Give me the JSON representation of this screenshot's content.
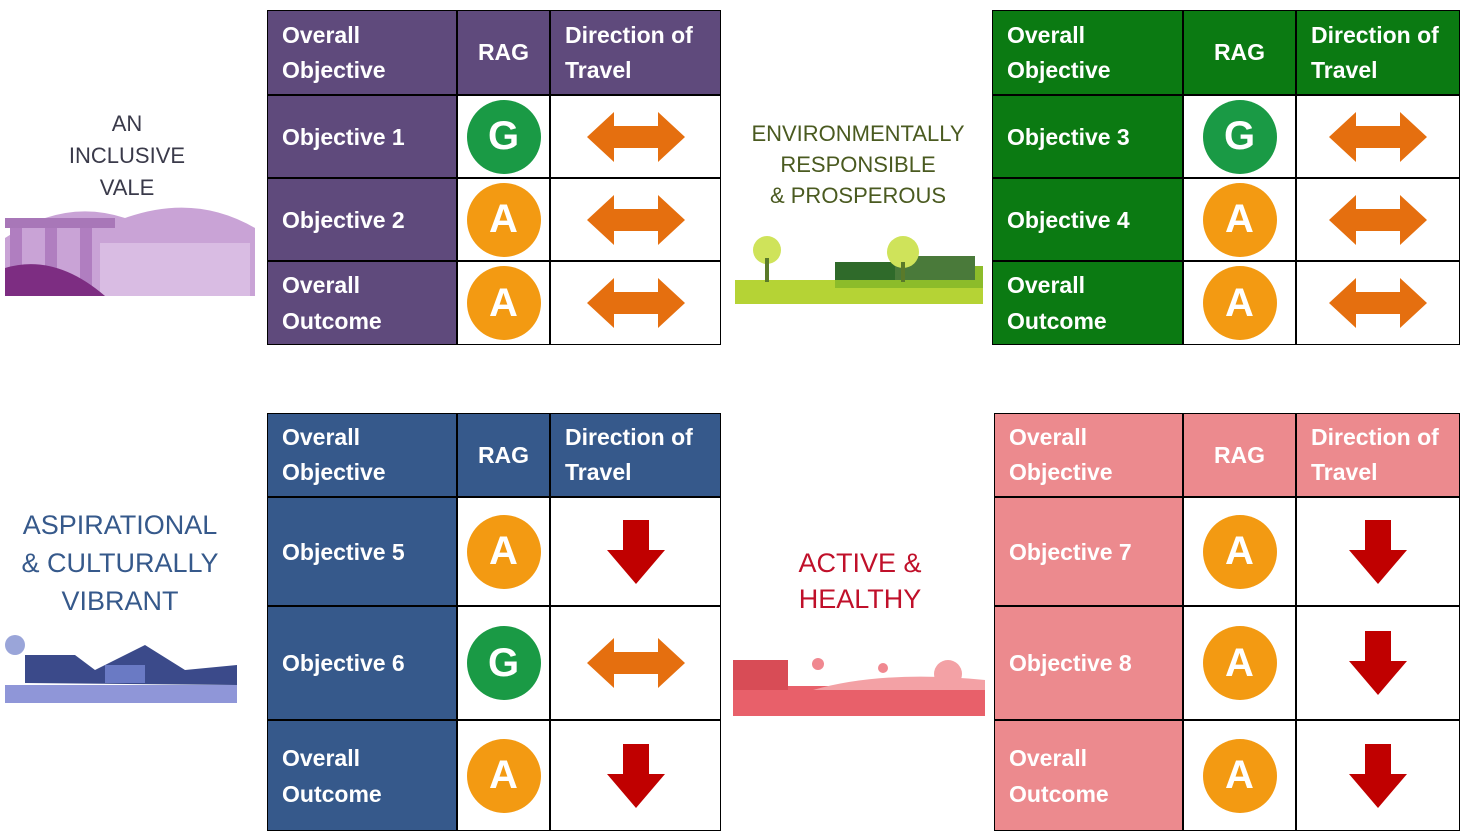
{
  "rag_colors": {
    "G": "#1a9a45",
    "A": "#f39a12"
  },
  "panels": [
    {
      "theme": [
        "AN",
        "INCLUSIVE",
        "VALE"
      ],
      "color": "#5f4a7c",
      "header": [
        "Overall Objective",
        "RAG",
        "Direction of Travel"
      ],
      "rows": [
        {
          "label": "Objective 1",
          "rag": "G",
          "direction": "both"
        },
        {
          "label": "Objective 2",
          "rag": "A",
          "direction": "both"
        },
        {
          "label": "Overall Outcome",
          "rag": "A",
          "direction": "both"
        }
      ]
    },
    {
      "theme": [
        "ENVIRONMENTALLY",
        "RESPONSIBLE",
        "& PROSPEROUS"
      ],
      "color": "#0b7a12",
      "header": [
        "Overall Objective",
        "RAG",
        "Direction of Travel"
      ],
      "rows": [
        {
          "label": "Objective 3",
          "rag": "G",
          "direction": "both"
        },
        {
          "label": "Objective 4",
          "rag": "A",
          "direction": "both"
        },
        {
          "label": "Overall Outcome",
          "rag": "A",
          "direction": "both"
        }
      ]
    },
    {
      "theme": [
        "ASPIRATIONAL",
        "& CULTURALLY",
        "VIBRANT"
      ],
      "color": "#36598b",
      "header": [
        "Overall Objective",
        "RAG",
        "Direction of Travel"
      ],
      "rows": [
        {
          "label": "Objective 5",
          "rag": "A",
          "direction": "down"
        },
        {
          "label": "Objective 6",
          "rag": "G",
          "direction": "both"
        },
        {
          "label": "Overall Outcome",
          "rag": "A",
          "direction": "down"
        }
      ]
    },
    {
      "theme": [
        "ACTIVE &",
        "HEALTHY"
      ],
      "color": "#ec8a8e",
      "header": [
        "Overall Objective",
        "RAG",
        "Direction of Travel"
      ],
      "rows": [
        {
          "label": "Objective 7",
          "rag": "A",
          "direction": "down"
        },
        {
          "label": "Objective 8",
          "rag": "A",
          "direction": "down"
        },
        {
          "label": "Overall Outcome",
          "rag": "A",
          "direction": "down"
        }
      ]
    }
  ]
}
